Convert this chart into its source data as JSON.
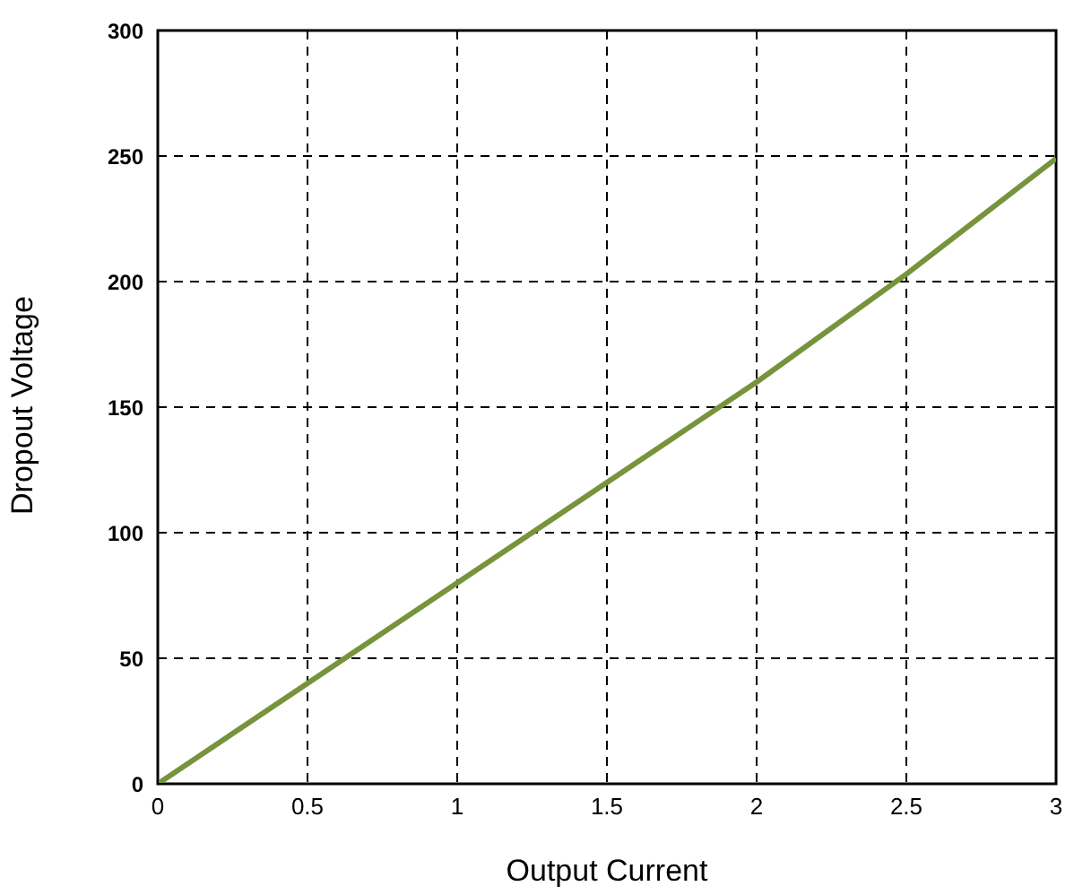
{
  "chart_data": {
    "type": "line",
    "xlabel": "Output Current",
    "ylabel": "Dropout Voltage",
    "x": [
      0,
      0.5,
      1,
      1.5,
      2,
      2.5,
      3
    ],
    "series": [
      {
        "color": "#77933c",
        "values": [
          0,
          40,
          80,
          120,
          160,
          203,
          249
        ]
      }
    ],
    "xlim": [
      0,
      3
    ],
    "xticks": [
      0,
      0.5,
      1,
      1.5,
      2,
      2.5,
      3
    ],
    "ylim": [
      0,
      300
    ],
    "yticks": [
      0,
      50,
      100,
      150,
      200,
      250,
      300
    ],
    "grid": true,
    "legend": false,
    "marker": "none",
    "line_style": "solid"
  }
}
